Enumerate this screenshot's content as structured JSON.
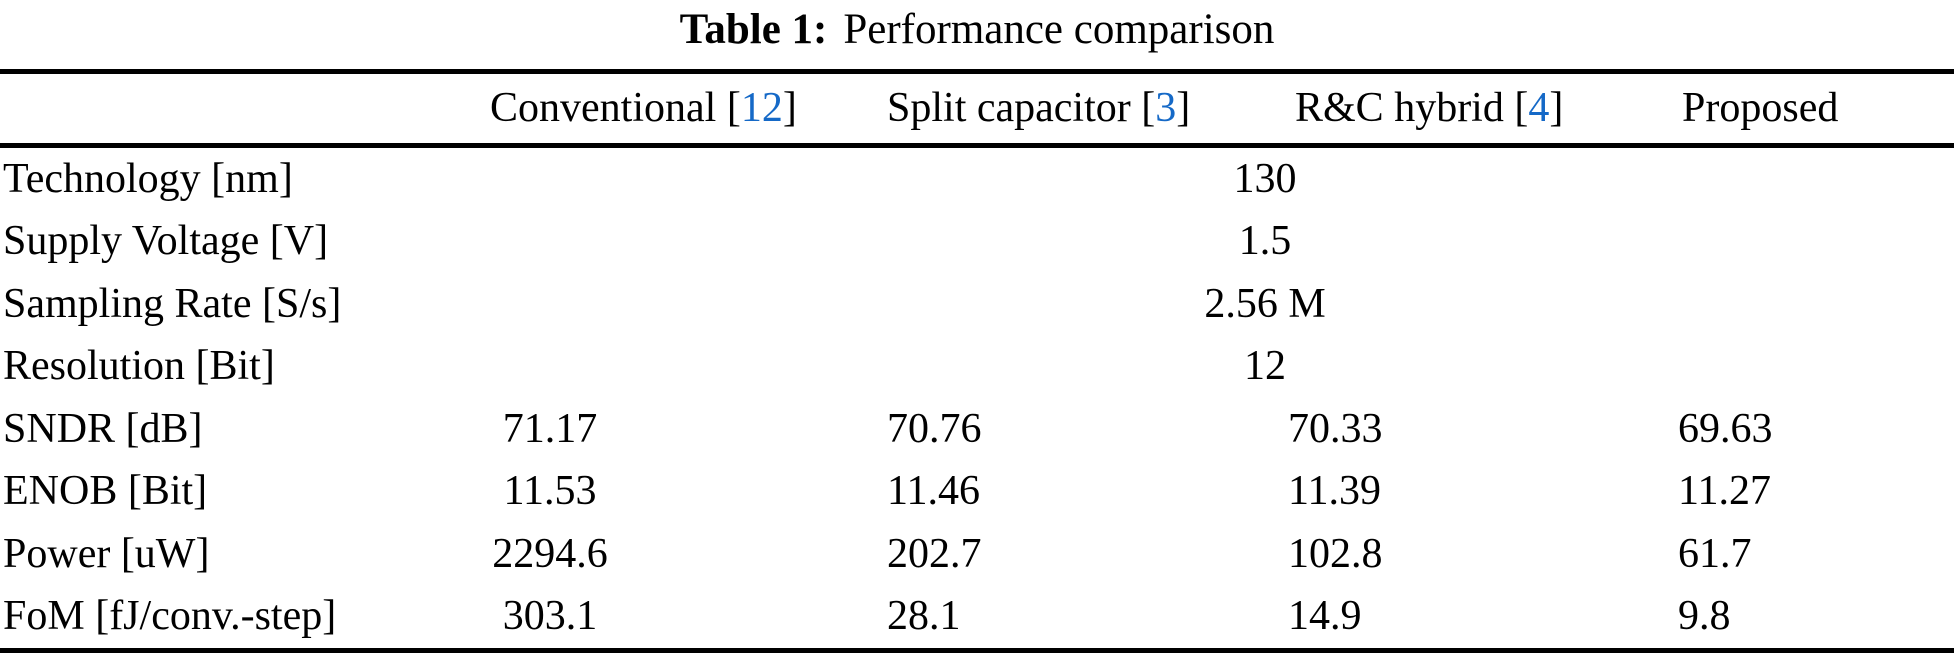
{
  "caption": {
    "label": "Table 1:",
    "text": "Performance comparison"
  },
  "colors": {
    "citation_blue": "#1569C7",
    "text": "#000000",
    "background": "#FFFFFF",
    "rule": "#000000"
  },
  "table": {
    "columns": [
      {
        "name": "Conventional",
        "bracket_open": " [",
        "citation": "12",
        "bracket_close": "]"
      },
      {
        "name": "Split capacitor",
        "bracket_open": " [",
        "citation": "3",
        "bracket_close": "]"
      },
      {
        "name": "R&C hybrid",
        "bracket_open": " [",
        "citation": "4",
        "bracket_close": "]"
      },
      {
        "name": "Proposed",
        "bracket_open": "",
        "citation": "",
        "bracket_close": ""
      }
    ],
    "shared_rows": [
      {
        "label": "Technology [nm]",
        "value": "130"
      },
      {
        "label": "Supply Voltage [V]",
        "value": "1.5"
      },
      {
        "label": "Sampling Rate [S/s]",
        "value": "2.56 M"
      },
      {
        "label": "Resolution [Bit]",
        "value": "12"
      }
    ],
    "data_rows": [
      {
        "label": "SNDR [dB]",
        "values": [
          "71.17",
          "70.76",
          "70.33",
          "69.63"
        ]
      },
      {
        "label": "ENOB [Bit]",
        "values": [
          "11.53",
          "11.46",
          "11.39",
          "11.27"
        ]
      },
      {
        "label": "Power [uW]",
        "values": [
          "2294.6",
          "202.7",
          "102.8",
          "61.7"
        ]
      },
      {
        "label": "FoM [fJ/conv.-step]",
        "values": [
          "303.1",
          "28.1",
          "14.9",
          "9.8"
        ]
      }
    ]
  }
}
